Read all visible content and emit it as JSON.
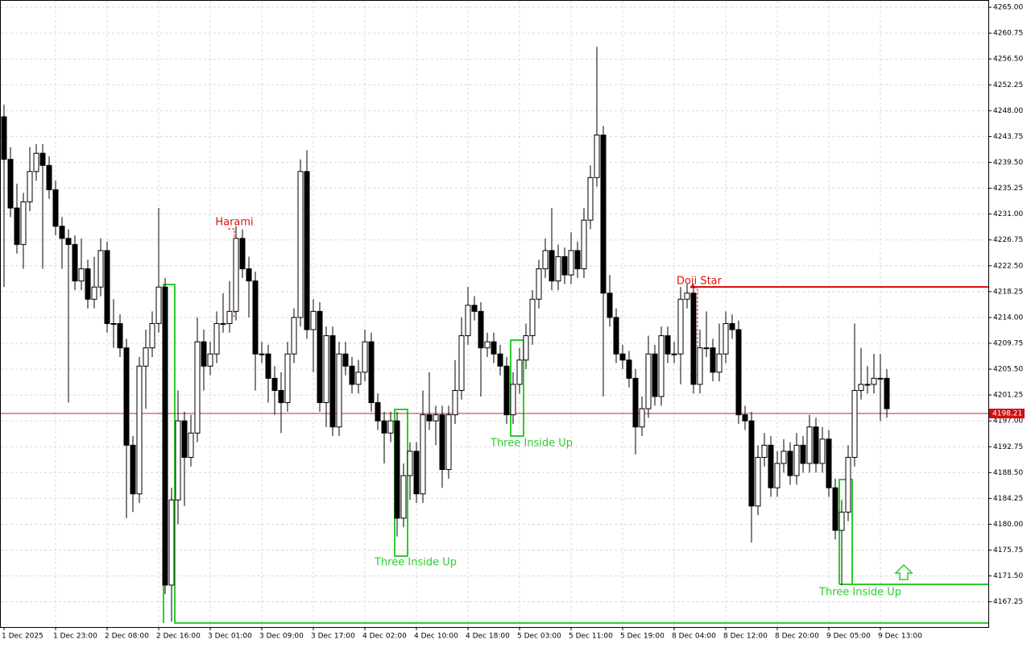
{
  "chart_data": {
    "type": "candlestick",
    "categories": [
      "1 Dec 2025",
      null,
      null,
      null,
      null,
      null,
      null,
      null,
      "1 Dec 23:00",
      null,
      null,
      null,
      null,
      null,
      null,
      null,
      "2 Dec 08:00",
      null,
      null,
      null,
      null,
      null,
      null,
      null,
      "2 Dec 16:00",
      null,
      null,
      null,
      null,
      null,
      null,
      null,
      "3 Dec 01:00",
      null,
      null,
      null,
      null,
      null,
      null,
      null,
      "3 Dec 09:00",
      null,
      null,
      null,
      null,
      null,
      null,
      null,
      "3 Dec 17:00",
      null,
      null,
      null,
      null,
      null,
      null,
      null,
      "4 Dec 02:00",
      null,
      null,
      null,
      null,
      null,
      null,
      null,
      "4 Dec 10:00",
      null,
      null,
      null,
      null,
      null,
      null,
      null,
      "4 Dec 18:00",
      null,
      null,
      null,
      null,
      null,
      null,
      null,
      "5 Dec 03:00",
      null,
      null,
      null,
      null,
      null,
      null,
      null,
      "5 Dec 11:00",
      null,
      null,
      null,
      null,
      null,
      null,
      null,
      "5 Dec 19:00",
      null,
      null,
      null,
      null,
      null,
      null,
      null,
      "8 Dec 04:00",
      null,
      null,
      null,
      null,
      null,
      null,
      null,
      "8 Dec 12:00",
      null,
      null,
      null,
      null,
      null,
      null,
      null,
      "8 Dec 20:00",
      null,
      null,
      null,
      null,
      null,
      null,
      null,
      "9 Dec 05:00",
      null,
      null,
      null,
      null,
      null,
      null,
      null,
      "9 Dec 13:00",
      null
    ],
    "candles": [
      [
        4247,
        4249,
        4219,
        4240
      ],
      [
        4240,
        4242,
        4230.5,
        4232
      ],
      [
        4232,
        4236,
        4224.5,
        4226
      ],
      [
        4226,
        4234.5,
        4222,
        4233
      ],
      [
        4233,
        4242,
        4231.5,
        4238
      ],
      [
        4238,
        4242.5,
        4236.5,
        4241
      ],
      [
        4241,
        4242.5,
        4222,
        4239
      ],
      [
        4239,
        4240.5,
        4233.5,
        4235
      ],
      [
        4235,
        4236.5,
        4227.5,
        4229
      ],
      [
        4229,
        4230.5,
        4222,
        4227
      ],
      [
        4227,
        4228.5,
        4200,
        4226
      ],
      [
        4226,
        4227.5,
        4218.5,
        4220
      ],
      [
        4220,
        4227,
        4218.5,
        4222
      ],
      [
        4222,
        4223.5,
        4215.5,
        4217
      ],
      [
        4217,
        4224,
        4215.5,
        4219
      ],
      [
        4219,
        4227,
        4217.5,
        4225
      ],
      [
        4225,
        4226.5,
        4211.5,
        4213
      ],
      [
        4213,
        4217,
        4209,
        4213
      ],
      [
        4213,
        4214.5,
        4207.5,
        4209
      ],
      [
        4209,
        4210.5,
        4181,
        4193
      ],
      [
        4193,
        4194.5,
        4182,
        4185
      ],
      [
        4185,
        4207.5,
        4183.5,
        4206
      ],
      [
        4206,
        4212,
        4199,
        4209
      ],
      [
        4209,
        4215,
        4207.5,
        4213
      ],
      [
        4213,
        4232,
        4211.5,
        4219
      ],
      [
        4219,
        4220.5,
        4168.5,
        4170
      ],
      [
        4170,
        4186,
        4164,
        4184
      ],
      [
        4184,
        4202,
        4180,
        4197
      ],
      [
        4197,
        4198.5,
        4183,
        4191
      ],
      [
        4191,
        4198,
        4189.5,
        4195
      ],
      [
        4195,
        4214,
        4193.5,
        4210
      ],
      [
        4210,
        4212,
        4202,
        4206
      ],
      [
        4206,
        4210,
        4204.5,
        4208
      ],
      [
        4208,
        4215,
        4206.5,
        4213
      ],
      [
        4213,
        4218,
        4211.5,
        4213
      ],
      [
        4213,
        4220,
        4211.5,
        4215
      ],
      [
        4215,
        4229,
        4213.5,
        4227
      ],
      [
        4227,
        4228.5,
        4220.5,
        4222
      ],
      [
        4222,
        4224,
        4214,
        4220
      ],
      [
        4220,
        4221.5,
        4202,
        4208
      ],
      [
        4208,
        4210,
        4206.5,
        4208
      ],
      [
        4208,
        4209.5,
        4200,
        4204
      ],
      [
        4204,
        4206,
        4198,
        4202
      ],
      [
        4202,
        4205,
        4195,
        4200
      ],
      [
        4200,
        4210,
        4198.5,
        4208
      ],
      [
        4208,
        4215.5,
        4206.5,
        4214
      ],
      [
        4214,
        4240,
        4212.5,
        4238
      ],
      [
        4238,
        4241.5,
        4210.5,
        4212
      ],
      [
        4212,
        4217,
        4205,
        4215
      ],
      [
        4215,
        4216.5,
        4198.5,
        4200
      ],
      [
        4200,
        4212.5,
        4196,
        4211
      ],
      [
        4211,
        4212.5,
        4194.5,
        4196
      ],
      [
        4196,
        4210,
        4194.5,
        4208
      ],
      [
        4208,
        4210,
        4204.5,
        4206
      ],
      [
        4206,
        4207.5,
        4201.5,
        4203
      ],
      [
        4203,
        4207,
        4201.5,
        4205
      ],
      [
        4205,
        4212,
        4203.5,
        4210
      ],
      [
        4210,
        4211.5,
        4198.5,
        4200
      ],
      [
        4200,
        4201.5,
        4195.5,
        4197
      ],
      [
        4197,
        4198.5,
        4190,
        4195
      ],
      [
        4195,
        4198.5,
        4193.5,
        4197
      ],
      [
        4197,
        4198.5,
        4178,
        4181
      ],
      [
        4181,
        4190,
        4179.5,
        4188
      ],
      [
        4188,
        4193.5,
        4184,
        4192
      ],
      [
        4192,
        4193.5,
        4183.5,
        4185
      ],
      [
        4185,
        4202,
        4183.5,
        4198
      ],
      [
        4198,
        4205,
        4195.5,
        4197
      ],
      [
        4197,
        4199.5,
        4193,
        4198
      ],
      [
        4198,
        4199.5,
        4186,
        4189
      ],
      [
        4189,
        4199.5,
        4187.5,
        4198
      ],
      [
        4198,
        4207,
        4196.5,
        4202
      ],
      [
        4202,
        4214,
        4200.5,
        4211
      ],
      [
        4211,
        4219,
        4209.5,
        4216
      ],
      [
        4216,
        4217.5,
        4213.5,
        4215
      ],
      [
        4215,
        4216.5,
        4201,
        4209
      ],
      [
        4209,
        4211.5,
        4207.5,
        4210
      ],
      [
        4210,
        4211.5,
        4206.5,
        4208
      ],
      [
        4208,
        4209.5,
        4204.5,
        4206
      ],
      [
        4206,
        4207.5,
        4196.5,
        4198
      ],
      [
        4198,
        4205,
        4196.5,
        4203
      ],
      [
        4203,
        4209,
        4201.5,
        4207
      ],
      [
        4207,
        4213,
        4205.5,
        4211
      ],
      [
        4211,
        4218.5,
        4209.5,
        4217
      ],
      [
        4217,
        4223.5,
        4215.5,
        4222
      ],
      [
        4222,
        4227,
        4220.5,
        4225
      ],
      [
        4225,
        4232,
        4218.5,
        4220
      ],
      [
        4220,
        4226,
        4218.5,
        4224
      ],
      [
        4224,
        4225.5,
        4219.5,
        4221
      ],
      [
        4221,
        4228,
        4219.5,
        4225
      ],
      [
        4225,
        4226.5,
        4220.5,
        4222
      ],
      [
        4222,
        4232,
        4220.5,
        4230
      ],
      [
        4230,
        4239,
        4228.5,
        4237
      ],
      [
        4237,
        4258.5,
        4235.5,
        4244
      ],
      [
        4244,
        4245.5,
        4201,
        4218
      ],
      [
        4218,
        4221,
        4212.5,
        4214
      ],
      [
        4214,
        4215.5,
        4206.5,
        4208
      ],
      [
        4208,
        4209.5,
        4205.5,
        4207
      ],
      [
        4207,
        4208.5,
        4202.5,
        4204
      ],
      [
        4204,
        4205.5,
        4191.5,
        4196
      ],
      [
        4196,
        4201,
        4194.5,
        4199
      ],
      [
        4199,
        4211,
        4197.5,
        4208
      ],
      [
        4208,
        4209.5,
        4199.5,
        4201
      ],
      [
        4201,
        4212.5,
        4199.5,
        4211
      ],
      [
        4211,
        4212.5,
        4206.5,
        4208
      ],
      [
        4208,
        4210,
        4206.5,
        4208
      ],
      [
        4208,
        4219,
        4203,
        4217
      ],
      [
        4217,
        4219.5,
        4215.5,
        4218
      ],
      [
        4218,
        4219.5,
        4201.5,
        4203
      ],
      [
        4203,
        4212,
        4201.5,
        4209
      ],
      [
        4209,
        4215,
        4207.5,
        4209
      ],
      [
        4209,
        4210.5,
        4203.5,
        4205
      ],
      [
        4205,
        4213,
        4203.5,
        4208
      ],
      [
        4208,
        4215,
        4206.5,
        4213
      ],
      [
        4213,
        4214.5,
        4210.5,
        4212
      ],
      [
        4212,
        4213.5,
        4196.5,
        4198
      ],
      [
        4198,
        4199.5,
        4195.5,
        4197
      ],
      [
        4197,
        4198.5,
        4177,
        4183
      ],
      [
        4183,
        4193,
        4181.5,
        4191
      ],
      [
        4191,
        4195,
        4189.5,
        4193
      ],
      [
        4193,
        4194.5,
        4184.5,
        4186
      ],
      [
        4186,
        4192,
        4184.5,
        4190
      ],
      [
        4190,
        4194,
        4188.5,
        4192
      ],
      [
        4192,
        4193.5,
        4186.5,
        4188
      ],
      [
        4188,
        4195,
        4186.5,
        4193
      ],
      [
        4193,
        4194.5,
        4188.5,
        4190
      ],
      [
        4190,
        4198,
        4188.5,
        4196
      ],
      [
        4196,
        4197.5,
        4188.5,
        4190
      ],
      [
        4190,
        4196,
        4188.5,
        4194
      ],
      [
        4194,
        4195.5,
        4184.5,
        4186
      ],
      [
        4186,
        4187.5,
        4177.5,
        4179
      ],
      [
        4179,
        4184,
        4170,
        4182
      ],
      [
        4182,
        4193,
        4180.5,
        4191
      ],
      [
        4191,
        4213,
        4189.5,
        4202
      ],
      [
        4202,
        4209,
        4200.5,
        4203
      ],
      [
        4203,
        4206,
        4201.5,
        4203
      ],
      [
        4203,
        4208,
        4201.5,
        4204
      ],
      [
        4204,
        4208,
        4197,
        4204
      ],
      [
        4204,
        4205.5,
        4197.5,
        4199
      ]
    ],
    "ylim": [
      4163.1,
      4266.2
    ],
    "yticks": [
      {
        "value": 4265,
        "label": "4265.00"
      },
      4260.75,
      {
        "value": 4256.5,
        "label": "4256.50"
      },
      4252.25,
      {
        "value": 4248,
        "label": "4248.00"
      },
      4243.75,
      {
        "value": 4239.5,
        "label": "4239.50"
      },
      4235.25,
      {
        "value": 4231,
        "label": "4231.00"
      },
      4226.75,
      {
        "value": 4222.5,
        "label": "4222.50"
      },
      4218.25,
      {
        "value": 4214,
        "label": "4214.00"
      },
      4209.75,
      {
        "value": 4205.5,
        "label": "4205.50"
      },
      4201.25,
      {
        "value": 4197,
        "label": "4197.00"
      },
      4192.75,
      {
        "value": 4188.5,
        "label": "4188.50"
      },
      4184.25,
      {
        "value": 4180,
        "label": "4180.00"
      },
      4175.75,
      {
        "value": 4171.5,
        "label": "4171.50"
      },
      4167.25
    ],
    "current_price": 4198.21,
    "grid": true,
    "annotations": [
      "Harami",
      "Doji Star",
      "Three Inside Up",
      "Three Inside Up",
      "Three Inside Up"
    ]
  }
}
